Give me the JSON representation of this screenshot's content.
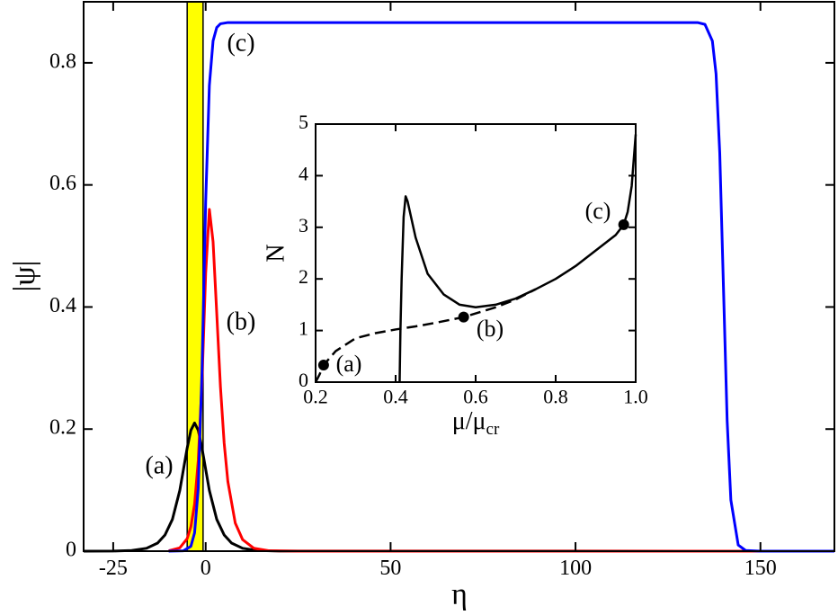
{
  "chart_data": [
    {
      "type": "line",
      "xlabel": "η",
      "ylabel": "|ψ|",
      "xlim": [
        -33,
        170
      ],
      "ylim": [
        0,
        0.9
      ],
      "xticks": [
        -25,
        0,
        50,
        100,
        150
      ],
      "yticks": [
        0,
        0.2,
        0.4,
        0.6,
        0.8
      ],
      "band": {
        "x": [
          -5,
          -0.7
        ],
        "color": "#ffff00"
      },
      "series": [
        {
          "color": "#000000",
          "x": [
            -33,
            -25,
            -20,
            -16,
            -13,
            -11,
            -9,
            -7,
            -5,
            -4,
            -3,
            -2,
            -1,
            1,
            3,
            5,
            7,
            10,
            14,
            20,
            170
          ],
          "values": [
            0,
            0.0002,
            0.0012,
            0.0047,
            0.0133,
            0.0265,
            0.052,
            0.0995,
            0.169,
            0.198,
            0.21,
            0.198,
            0.169,
            0.0995,
            0.052,
            0.0265,
            0.0133,
            0.0047,
            0.0012,
            0.0002,
            0
          ]
        },
        {
          "color": "#ff0000",
          "x": [
            -10,
            -7,
            -5,
            -4,
            -3,
            -2,
            -1,
            0,
            1,
            2,
            3,
            4,
            5,
            6,
            8,
            10,
            13,
            17,
            25,
            170
          ],
          "values": [
            0.0007,
            0.0054,
            0.0205,
            0.04,
            0.077,
            0.149,
            0.277,
            0.455,
            0.56,
            0.507,
            0.389,
            0.269,
            0.177,
            0.114,
            0.046,
            0.0188,
            0.0048,
            0.0008,
            0,
            0
          ]
        },
        {
          "color": "#0000ff",
          "x": [
            -10,
            -6,
            -4,
            -3,
            -2,
            -1,
            0,
            1,
            2,
            3,
            4,
            6,
            130,
            133,
            135,
            137,
            138,
            139,
            140,
            141,
            142,
            144,
            146,
            150,
            170
          ],
          "values": [
            0,
            0.0006,
            0.008,
            0.03,
            0.103,
            0.294,
            0.572,
            0.763,
            0.836,
            0.858,
            0.864,
            0.866,
            0.866,
            0.866,
            0.863,
            0.836,
            0.782,
            0.652,
            0.433,
            0.214,
            0.084,
            0.01,
            0.0011,
            0,
            0
          ]
        }
      ],
      "annotations": [
        {
          "text": "(a)"
        },
        {
          "text": "(b)"
        },
        {
          "text": "(c)"
        }
      ]
    },
    {
      "type": "line",
      "xlabel": "μ/μ",
      "xlabel_sub": "cr",
      "ylabel": "N",
      "xlim": [
        0.2,
        1.0
      ],
      "ylim": [
        0,
        5
      ],
      "xticks": [
        0.2,
        0.4,
        0.6,
        0.8,
        {
          "value": 1.0,
          "label": "1.0"
        }
      ],
      "yticks": [
        0,
        1,
        2,
        3,
        4,
        5
      ],
      "series": [
        {
          "color": "#000000",
          "dash": true,
          "x": [
            0.2,
            0.21,
            0.22,
            0.25,
            0.3,
            0.35,
            0.4,
            0.45,
            0.5,
            0.57,
            0.65,
            0.7,
            0.75
          ],
          "values": [
            0,
            0.15,
            0.33,
            0.6,
            0.85,
            0.95,
            1.02,
            1.08,
            1.15,
            1.26,
            1.45,
            1.6,
            1.8
          ]
        },
        {
          "color": "#000000",
          "dash": false,
          "x": [
            0.41,
            0.412,
            0.415,
            0.42,
            0.425,
            0.43,
            0.45,
            0.48,
            0.52,
            0.56,
            0.6,
            0.65,
            0.7,
            0.75,
            0.8,
            0.85,
            0.9,
            0.95,
            0.97,
            0.98,
            0.99,
            1.0
          ],
          "values": [
            0,
            1.0,
            2.0,
            3.2,
            3.6,
            3.5,
            2.8,
            2.1,
            1.7,
            1.5,
            1.45,
            1.5,
            1.62,
            1.8,
            2.0,
            2.25,
            2.55,
            2.85,
            3.05,
            3.3,
            3.8,
            4.8
          ]
        }
      ],
      "points": {
        "x": [
          0.22,
          0.57,
          0.97
        ],
        "values": [
          0.33,
          1.26,
          3.05
        ],
        "color": "#000000"
      },
      "annotations": [
        {
          "text": "(a)"
        },
        {
          "text": "(b)"
        },
        {
          "text": "(c)"
        }
      ]
    }
  ]
}
